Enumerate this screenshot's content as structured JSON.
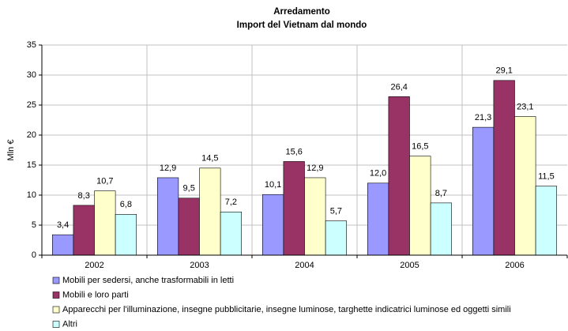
{
  "chart_data": {
    "type": "bar",
    "title": "Arredamento",
    "subtitle": "Import del Vietnam dal mondo",
    "y_label": "Mln €",
    "categories": [
      "2002",
      "2003",
      "2004",
      "2005",
      "2006"
    ],
    "series": [
      {
        "name": "Mobili per sedersi, anche trasformabili in letti",
        "color": "#9999ff",
        "values": [
          3.4,
          12.9,
          10.1,
          12.0,
          21.3
        ],
        "value_labels": [
          "3,4",
          "12,9",
          "10,1",
          "12,0",
          "21,3"
        ]
      },
      {
        "name": "Mobili e loro parti",
        "color": "#993366",
        "values": [
          8.3,
          9.5,
          15.6,
          26.4,
          29.1
        ],
        "value_labels": [
          "8,3",
          "9,5",
          "15,6",
          "26,4",
          "29,1"
        ]
      },
      {
        "name": "Apparecchi per l'illuminazione, insegne pubblicitarie, insegne luminose, targhette indicatrici luminose ed oggetti simili",
        "color": "#ffffcc",
        "values": [
          10.7,
          14.5,
          12.9,
          16.5,
          23.1
        ],
        "value_labels": [
          "10,7",
          "14,5",
          "12,9",
          "16,5",
          "23,1"
        ]
      },
      {
        "name": "Altri",
        "color": "#ccffff",
        "values": [
          6.8,
          7.2,
          5.7,
          8.7,
          11.5
        ],
        "value_labels": [
          "6,8",
          "7,2",
          "5,7",
          "8,7",
          "11,5"
        ]
      }
    ],
    "ylim": [
      0,
      35
    ],
    "yticks": [
      0,
      5,
      10,
      15,
      20,
      25,
      30,
      35
    ],
    "grid": true
  }
}
